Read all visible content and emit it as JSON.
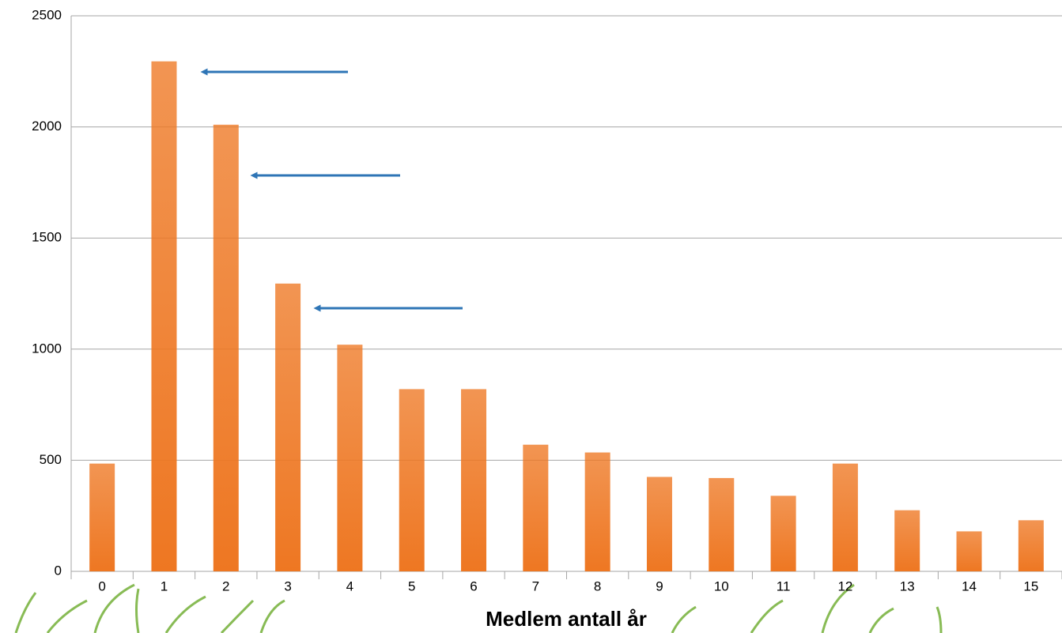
{
  "chart_data": {
    "type": "bar",
    "x_label": "Medlem antall år",
    "categories": [
      "0",
      "1",
      "2",
      "3",
      "4",
      "5",
      "6",
      "7",
      "8",
      "9",
      "10",
      "11",
      "12",
      "13",
      "14",
      "15"
    ],
    "values": [
      485,
      2295,
      2010,
      1295,
      1020,
      820,
      820,
      570,
      535,
      425,
      420,
      340,
      485,
      275,
      180,
      230
    ],
    "color": "#ee7722",
    "ylim": [
      0,
      2500
    ],
    "yticks": [
      0,
      500,
      1000,
      1500,
      2000,
      2500
    ],
    "grid": true
  }
}
